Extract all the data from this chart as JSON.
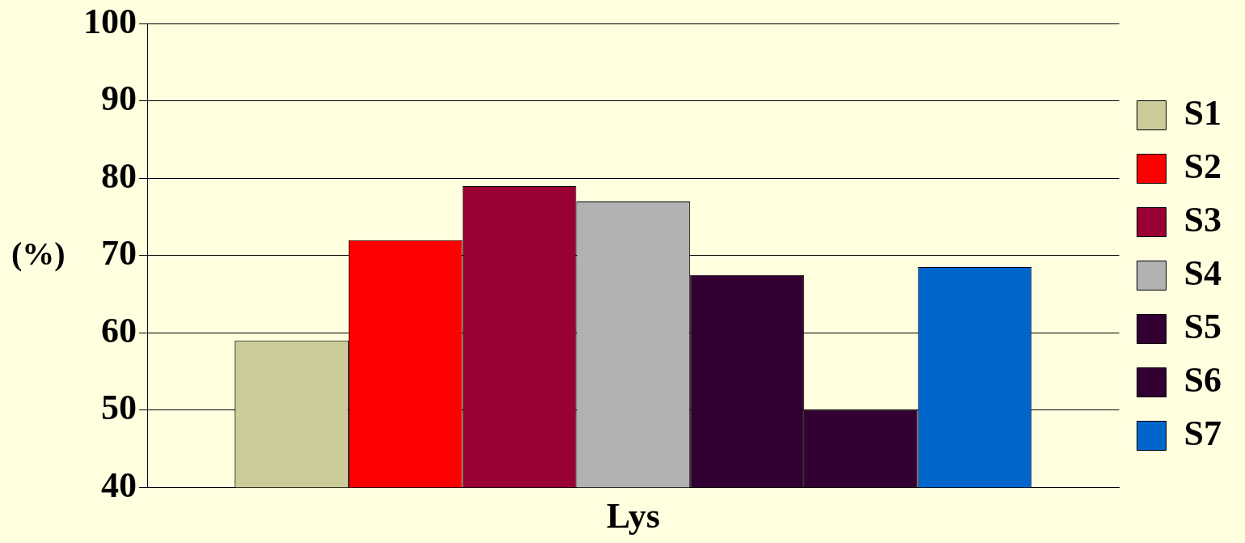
{
  "chart_data": {
    "type": "bar",
    "xlabel": "Lys",
    "ylabel": "(%)",
    "categories": [
      null
    ],
    "series": [
      {
        "name": "S1",
        "color": "#cccc99",
        "values": [
          59
        ]
      },
      {
        "name": "S2",
        "color": "#ff0000",
        "values": [
          72
        ]
      },
      {
        "name": "S3",
        "color": "#990033",
        "values": [
          79
        ]
      },
      {
        "name": "S4",
        "color": "#b2b2b2",
        "values": [
          77
        ]
      },
      {
        "name": "S5",
        "color": "#330033",
        "values": [
          67.5
        ]
      },
      {
        "name": "S6",
        "color": "#330033",
        "values": [
          50
        ]
      },
      {
        "name": "S7",
        "color": "#0066cc",
        "values": [
          68.5
        ]
      }
    ],
    "ylim": [
      40,
      100
    ],
    "yticks": [
      40,
      50,
      60,
      70,
      80,
      90,
      100
    ],
    "grid": "y",
    "legend": "right"
  }
}
